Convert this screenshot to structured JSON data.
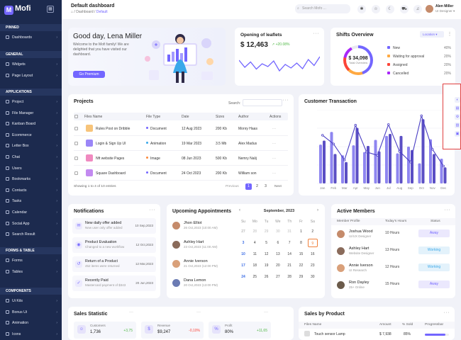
{
  "app": {
    "brand": "Mofi"
  },
  "sidebar": {
    "sections": [
      {
        "label": "PINNED",
        "items": [
          {
            "label": "Dashboards"
          }
        ]
      },
      {
        "label": "GENERAL",
        "items": [
          {
            "label": "Widgets"
          },
          {
            "label": "Page Layout"
          }
        ]
      },
      {
        "label": "APPLICATIONS",
        "items": [
          {
            "label": "Project"
          },
          {
            "label": "File Manager"
          },
          {
            "label": "Kanban Board"
          },
          {
            "label": "Ecommerce"
          },
          {
            "label": "Letter Box"
          },
          {
            "label": "Chat"
          },
          {
            "label": "Users"
          },
          {
            "label": "Bookmarks"
          },
          {
            "label": "Contacts"
          },
          {
            "label": "Tasks"
          },
          {
            "label": "Calendar"
          },
          {
            "label": "Social App"
          },
          {
            "label": "Search Result"
          }
        ]
      },
      {
        "label": "FORMS & TABLE",
        "items": [
          {
            "label": "Forms"
          },
          {
            "label": "Tables"
          }
        ]
      },
      {
        "label": "COMPONENTS",
        "items": [
          {
            "label": "Ui Kits"
          },
          {
            "label": "Bonus Ui"
          },
          {
            "label": "Animation"
          },
          {
            "label": "Icons"
          }
        ]
      }
    ]
  },
  "header": {
    "title": "Default dashboard",
    "breadcrumb": [
      "Dashboard",
      "Default"
    ],
    "search_placeholder": "Search Mofo ...",
    "user": {
      "name": "Alen Miller",
      "role": "UI Designer"
    }
  },
  "greeting": {
    "title": "Good day, Lena Miller",
    "subtitle": "Welcome to the Mofi family! We are delighted that you have visited our dashboard.",
    "button": "Go Premium"
  },
  "leaflets": {
    "title": "Opening of leaflets",
    "amount": "$ 12,463",
    "change": "+20.08%",
    "line": [
      60,
      40,
      55,
      35,
      50,
      42,
      58,
      30,
      48,
      38,
      52,
      36,
      62,
      45,
      70
    ]
  },
  "shifts": {
    "title": "Shifts Overview",
    "location_label": "Location",
    "center_value": "$ 34,098",
    "center_label": "Total Overview",
    "legend": [
      {
        "label": "New",
        "value": "40%",
        "color": "#7366ff"
      },
      {
        "label": "Waiting for approval",
        "value": "20%",
        "color": "#ffa941"
      },
      {
        "label": "Assigned",
        "value": "20%",
        "color": "#fc4438"
      },
      {
        "label": "Cancelled",
        "value": "20%",
        "color": "#a927f9"
      }
    ]
  },
  "projects": {
    "title": "Projects",
    "search_label": "Search:",
    "columns": [
      "Files Name",
      "File Type",
      "Date",
      "Sizes",
      "Author",
      "Actions"
    ],
    "rows": [
      {
        "name": "Rules Post on Dribble",
        "type": "Document",
        "type_color": "#7366ff",
        "date": "12 Aug 2023",
        "size": "200 Kb",
        "author": "Monry Haas",
        "thumb": "#f7c47a"
      },
      {
        "name": "Login & Sign Up UI",
        "type": "Animation",
        "type_color": "#3aa8e9",
        "date": "19 Mar 2023",
        "size": "3.5 Mb",
        "author": "Alex Madus",
        "thumb": "#9b86f7"
      },
      {
        "name": "Nft website Pages",
        "type": "Image",
        "type_color": "#fc8a3c",
        "date": "08 Jun 2023",
        "size": "500 Kb",
        "author": "Nemry Nalij",
        "thumb": "#f08ac0"
      },
      {
        "name": "Square Dashboard",
        "type": "Document",
        "type_color": "#7366ff",
        "date": "24 Oct 2023",
        "size": "200 Kb",
        "author": "William son",
        "thumb": "#c38af0"
      }
    ],
    "footer": "Showing 1 to 4 of 10 entries",
    "pagination": {
      "prev": "Previous",
      "pages": [
        "1",
        "2",
        "3"
      ],
      "next": "Next"
    }
  },
  "customer_transaction": {
    "title": "Customer Transaction",
    "months": [
      "Jan",
      "Feb",
      "Mar",
      "Apr",
      "May",
      "Jun",
      "Jul",
      "Aug",
      "Sep",
      "Oct",
      "Nov",
      "Dec"
    ]
  },
  "chart_data": {
    "type": "bar",
    "title": "Customer Transaction",
    "categories": [
      "Jan",
      "Feb",
      "Mar",
      "Apr",
      "May",
      "Jun",
      "Jul",
      "Aug",
      "Sep",
      "Oct",
      "Nov",
      "Dec"
    ],
    "series": [
      {
        "values": [
          58,
          77,
          42,
          57,
          47,
          65,
          71,
          45,
          55,
          30,
          66,
          37
        ],
        "color": "#8e85f0"
      },
      {
        "values": [
          64,
          44,
          32,
          83,
          56,
          48,
          74,
          71,
          50,
          96,
          44,
          24
        ],
        "color": "#5b4fc4"
      }
    ],
    "line": {
      "values": [
        72,
        59,
        35,
        87,
        47,
        42,
        88,
        48,
        32,
        101,
        51,
        26
      ],
      "color": "#4a3ec4"
    },
    "ylim": [
      0,
      110
    ]
  },
  "notifications": {
    "title": "Notifications",
    "items": [
      {
        "title": "New daily offer added",
        "sub": "New user only offer added",
        "date": "10 Sep,2023"
      },
      {
        "title": "Product Evaluation",
        "sub": "Changed to a new workflow",
        "date": "12 Oct,2023"
      },
      {
        "title": "Return of a Product",
        "sub": "452 items were returned",
        "date": "12 Mar,2023"
      },
      {
        "title": "Recently Paid",
        "sub": "Mastercard payment of $343",
        "date": "20 Jun,2023"
      }
    ]
  },
  "appointments": {
    "title": "Upcoming Appointments",
    "items": [
      {
        "name": "Jhon Elliot",
        "time": "26 Oct,2023 (10:00 AM)"
      },
      {
        "name": "Ashley Hart",
        "time": "23 Oct,2023 (11:00 AM)"
      },
      {
        "name": "Annie Iverson",
        "time": "21 Oct,2023 (12:00 PM)"
      },
      {
        "name": "Dana Lemon",
        "time": "20 Oct,2023 (13:00 PM)"
      }
    ],
    "calendar": {
      "month": "September, 2023",
      "weekdays": [
        "Su",
        "Mo",
        "Tu",
        "We",
        "Th",
        "Fr",
        "Sa"
      ],
      "weeks": [
        [
          "27",
          "28",
          "29",
          "30",
          "31",
          "1",
          "2"
        ],
        [
          "3",
          "4",
          "5",
          "6",
          "7",
          "8",
          "9"
        ],
        [
          "10",
          "11",
          "12",
          "13",
          "14",
          "15",
          "16"
        ],
        [
          "17",
          "18",
          "19",
          "20",
          "21",
          "22",
          "23"
        ],
        [
          "24",
          "25",
          "26",
          "27",
          "28",
          "29",
          "30"
        ]
      ],
      "selected": "9"
    }
  },
  "active_members": {
    "title": "Active Members",
    "columns": [
      "Member Profile",
      "Today's Hours",
      "Status"
    ],
    "rows": [
      {
        "name": "Joshua Wood",
        "role": "UI/UX Designer",
        "hours": "10 Hours",
        "status": "Away"
      },
      {
        "name": "Ashley Hart",
        "role": "Website Designer",
        "hours": "13 Hours",
        "status": "Working"
      },
      {
        "name": "Annie Iverson",
        "role": "UI Research",
        "hours": "12 Hours",
        "status": "Working"
      },
      {
        "name": "Ron Dayley",
        "role": "25+ Online",
        "hours": "15 Hours",
        "status": "Away"
      }
    ]
  },
  "sales_statistic": {
    "title": "Sales Statistic",
    "items": [
      {
        "label": "Customers",
        "value": "1,736",
        "change": "+3,75",
        "positive": true
      },
      {
        "label": "Revenue",
        "value": "$9,247",
        "change": "-0,10%",
        "positive": false
      },
      {
        "label": "Profit",
        "value": "80%",
        "change": "+11,65",
        "positive": true
      }
    ]
  },
  "sales_by_product": {
    "title": "Sales by Product",
    "columns": [
      "Files Name",
      "Amount",
      "% Sold",
      "Progressbar"
    ],
    "rows": [
      {
        "name": "Touch sensor Lamp",
        "amount": "$ 7,938",
        "sold": "85%",
        "progress": 0.85
      }
    ]
  }
}
